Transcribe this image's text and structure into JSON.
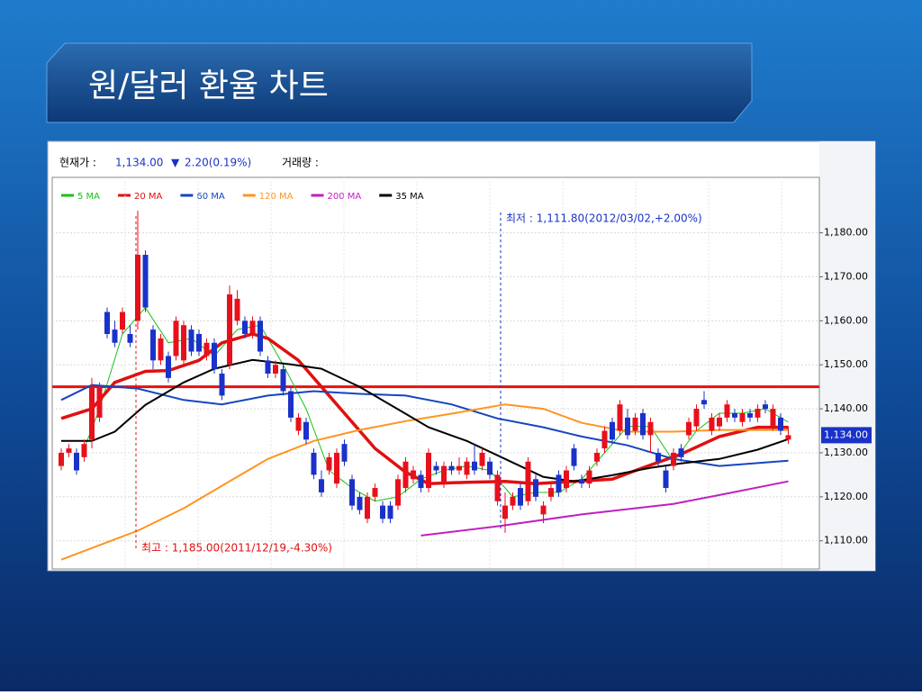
{
  "slide": {
    "title": "원/달러 환율 차트"
  },
  "chart_data": {
    "type": "candlestick",
    "header": {
      "price_label": "현재가 :",
      "change_symbol": "▼",
      "change": "2.20(0.19%)",
      "volume_label": "거래량 :"
    },
    "last_price": {
      "value": 1134,
      "label": "1,134.00"
    },
    "up_color": "#e8101c",
    "down_color": "#1a32c8",
    "ohlc": [
      [
        1127,
        1131,
        1126,
        1130
      ],
      [
        1130,
        1132,
        1129,
        1131
      ],
      [
        1130,
        1131,
        1125,
        1126
      ],
      [
        1129,
        1133,
        1128,
        1132
      ],
      [
        1133,
        1147,
        1131,
        1145
      ],
      [
        1138,
        1146,
        1137,
        1145
      ],
      [
        1162,
        1163,
        1156,
        1157
      ],
      [
        1158,
        1160,
        1154,
        1155
      ],
      [
        1158,
        1163,
        1157,
        1162
      ],
      [
        1157,
        1159,
        1154,
        1155
      ],
      [
        1160,
        1185,
        1158,
        1175
      ],
      [
        1175,
        1176,
        1162,
        1163
      ],
      [
        1158,
        1159,
        1149,
        1151
      ],
      [
        1151,
        1157,
        1150,
        1156
      ],
      [
        1152,
        1153,
        1146,
        1147
      ],
      [
        1152,
        1161,
        1151,
        1160
      ],
      [
        1151,
        1160,
        1150,
        1159
      ],
      [
        1158,
        1159,
        1152,
        1153
      ],
      [
        1157,
        1158,
        1152,
        1153
      ],
      [
        1152,
        1156,
        1151,
        1155
      ],
      [
        1155,
        1156,
        1148,
        1149
      ],
      [
        1148,
        1149,
        1142,
        1143
      ],
      [
        1150,
        1168,
        1149,
        1166
      ],
      [
        1160,
        1167,
        1159,
        1165
      ],
      [
        1160,
        1161,
        1156,
        1157
      ],
      [
        1157,
        1161,
        1156,
        1160
      ],
      [
        1160,
        1161,
        1152,
        1153
      ],
      [
        1151,
        1152,
        1147,
        1148
      ],
      [
        1148,
        1151,
        1147,
        1150
      ],
      [
        1149,
        1150,
        1143,
        1144
      ],
      [
        1144,
        1145,
        1137,
        1138
      ],
      [
        1135,
        1139,
        1134,
        1138
      ],
      [
        1137,
        1138,
        1132,
        1133
      ],
      [
        1130,
        1131,
        1124,
        1125
      ],
      [
        1124,
        1126,
        1120,
        1121
      ],
      [
        1126,
        1130,
        1125,
        1129
      ],
      [
        1123,
        1131,
        1122,
        1130
      ],
      [
        1132,
        1133,
        1127,
        1128
      ],
      [
        1124,
        1125,
        1117,
        1118
      ],
      [
        1120,
        1121,
        1116,
        1117
      ],
      [
        1115,
        1121,
        1114,
        1120
      ],
      [
        1120,
        1123,
        1119,
        1122
      ],
      [
        1118,
        1119,
        1114,
        1115
      ],
      [
        1118,
        1119,
        1114,
        1115
      ],
      [
        1118,
        1125,
        1117,
        1124
      ],
      [
        1122,
        1129,
        1121,
        1128
      ],
      [
        1124,
        1127,
        1123,
        1126
      ],
      [
        1125,
        1126,
        1121,
        1122
      ],
      [
        1122,
        1131,
        1121,
        1130
      ],
      [
        1127,
        1128,
        1125,
        1126
      ],
      [
        1123,
        1128,
        1122,
        1127
      ],
      [
        1127,
        1128,
        1125,
        1126
      ],
      [
        1126,
        1129,
        1125,
        1127
      ],
      [
        1125,
        1129,
        1124,
        1128
      ],
      [
        1128,
        1132,
        1125,
        1126
      ],
      [
        1127,
        1131,
        1126,
        1130
      ],
      [
        1128,
        1129,
        1124,
        1125
      ],
      [
        1119,
        1126,
        1118,
        1125
      ],
      [
        1115,
        1121,
        1111.8,
        1118
      ],
      [
        1118,
        1121,
        1117,
        1120
      ],
      [
        1122,
        1123,
        1117,
        1118
      ],
      [
        1119,
        1129,
        1118,
        1128
      ],
      [
        1124,
        1125,
        1119,
        1120
      ],
      [
        1116,
        1119,
        1114,
        1118
      ],
      [
        1120,
        1123,
        1119,
        1122
      ],
      [
        1125,
        1126,
        1120,
        1121
      ],
      [
        1122,
        1127,
        1121,
        1126
      ],
      [
        1131,
        1132,
        1126,
        1127
      ],
      [
        1124,
        1125,
        1122,
        1123
      ],
      [
        1123,
        1127,
        1122,
        1126
      ],
      [
        1128,
        1131,
        1127,
        1130
      ],
      [
        1131,
        1136,
        1130,
        1135
      ],
      [
        1137,
        1138,
        1132,
        1133
      ],
      [
        1135,
        1142,
        1134,
        1141
      ],
      [
        1138,
        1140,
        1133,
        1134
      ],
      [
        1135,
        1139,
        1134,
        1138
      ],
      [
        1139,
        1140,
        1133,
        1134
      ],
      [
        1134,
        1138,
        1130,
        1137
      ],
      [
        1130,
        1131,
        1127,
        1128
      ],
      [
        1126,
        1127,
        1121,
        1122
      ],
      [
        1127,
        1131,
        1126,
        1130
      ],
      [
        1131,
        1132,
        1128,
        1129
      ],
      [
        1134,
        1138,
        1133,
        1137
      ],
      [
        1136,
        1141,
        1135,
        1140
      ],
      [
        1142,
        1144,
        1140,
        1141
      ],
      [
        1135,
        1139,
        1134,
        1138
      ],
      [
        1136,
        1139,
        1135,
        1138
      ],
      [
        1138,
        1142,
        1137,
        1141
      ],
      [
        1139,
        1140,
        1137,
        1138
      ],
      [
        1137,
        1140,
        1136,
        1139
      ],
      [
        1139,
        1140,
        1137,
        1138
      ],
      [
        1138,
        1141,
        1137,
        1140
      ],
      [
        1141,
        1142,
        1139,
        1140
      ],
      [
        1136,
        1141,
        1135,
        1140
      ],
      [
        1138,
        1139,
        1134,
        1135
      ],
      [
        1133,
        1136,
        1132,
        1134
      ]
    ],
    "series": [
      {
        "name": "5 MA",
        "color": "#18c018",
        "line_width": 1,
        "x": [
          3,
          5,
          8,
          11,
          14,
          17,
          20,
          23,
          26,
          29,
          32,
          35,
          38,
          41,
          44,
          47,
          50,
          53,
          56,
          59,
          62,
          65,
          68,
          71,
          74,
          77,
          80,
          83,
          86,
          89,
          92,
          95
        ],
        "values": [
          1131,
          1140,
          1157,
          1163,
          1155,
          1156,
          1152,
          1158,
          1159,
          1150,
          1140,
          1126,
          1122,
          1119,
          1120,
          1124,
          1126,
          1127,
          1126,
          1120,
          1121,
          1121,
          1124,
          1130,
          1136,
          1136,
          1128,
          1135,
          1139,
          1139,
          1140,
          1137
        ]
      },
      {
        "name": "20 MA",
        "color": "#e01010",
        "line_width": 3.5,
        "x": [
          0,
          4,
          7,
          11,
          14,
          18,
          21,
          25,
          27,
          31,
          34,
          38,
          41,
          45,
          48,
          53,
          58,
          62,
          67,
          72,
          76,
          81,
          86,
          91,
          95
        ],
        "values": [
          1137.8,
          1140,
          1146,
          1148.5,
          1148.7,
          1151,
          1155,
          1157,
          1156,
          1151,
          1145,
          1137,
          1131,
          1125.6,
          1123,
          1123.3,
          1123.5,
          1123,
          1123.5,
          1124,
          1126.6,
          1129.7,
          1133.7,
          1135.8,
          1135.8
        ]
      },
      {
        "name": "60 MA",
        "color": "#1446c0",
        "line_width": 2,
        "x": [
          0,
          4,
          10,
          16,
          21,
          27,
          33,
          39,
          45,
          51,
          57,
          63,
          68,
          74,
          80,
          86,
          95
        ],
        "values": [
          1142,
          1145.4,
          1144.6,
          1142,
          1141,
          1143,
          1144,
          1143.4,
          1143,
          1141,
          1137.8,
          1135.8,
          1133.7,
          1131.7,
          1128.6,
          1127,
          1128.2
        ]
      },
      {
        "name": "120 MA",
        "color": "#ff9420",
        "line_width": 2,
        "x": [
          0,
          10,
          16,
          21,
          27,
          33,
          39,
          45,
          51,
          58,
          63,
          68,
          74,
          80,
          86,
          95
        ],
        "values": [
          1105.7,
          1112.3,
          1117.4,
          1122.5,
          1128.6,
          1132.7,
          1135.2,
          1137.2,
          1138.9,
          1141,
          1140,
          1136.8,
          1134.8,
          1134.8,
          1135.2,
          1135.2
        ]
      },
      {
        "name": "200 MA",
        "color": "#c020c0",
        "line_width": 2,
        "x": [
          47,
          57,
          68,
          80,
          86,
          95
        ],
        "values": [
          1111.2,
          1113.3,
          1116,
          1118.4,
          1120.4,
          1123.5
        ]
      },
      {
        "name": "35 MA",
        "color": "#000000",
        "line_width": 2,
        "x": [
          0,
          4,
          7,
          11,
          16,
          20,
          25,
          30,
          34,
          39,
          44,
          48,
          53,
          58,
          63,
          67,
          72,
          77,
          81,
          86,
          91,
          95
        ],
        "values": [
          1132.7,
          1132.7,
          1134.8,
          1140.9,
          1146,
          1149.1,
          1151.1,
          1150.1,
          1149.1,
          1145,
          1139.9,
          1135.8,
          1132.7,
          1128.6,
          1124.5,
          1123.5,
          1124.9,
          1126.6,
          1127.6,
          1128.6,
          1130.7,
          1133.1
        ]
      }
    ],
    "hline": {
      "value": 1145,
      "color": "#e81010"
    },
    "annotations": {
      "low": "최저 : 1,111.80(2012/03/02,+2.00%)",
      "high": "최고 : 1,185.00(2011/12/19,-4.30%)"
    },
    "ylim": [
      1103.6,
      1192.6
    ],
    "yticks": [
      {
        "value": 1110,
        "label": "1,110.00"
      },
      {
        "value": 1120,
        "label": "1,120.00"
      },
      {
        "value": 1130,
        "label": "1,130.00"
      },
      {
        "value": 1140,
        "label": "1,140.00"
      },
      {
        "value": 1150,
        "label": "1,150.00"
      },
      {
        "value": 1160,
        "label": "1,160.00"
      },
      {
        "value": 1170,
        "label": "1,170.00"
      },
      {
        "value": 1180,
        "label": "1,180.00"
      }
    ],
    "grid": true
  }
}
